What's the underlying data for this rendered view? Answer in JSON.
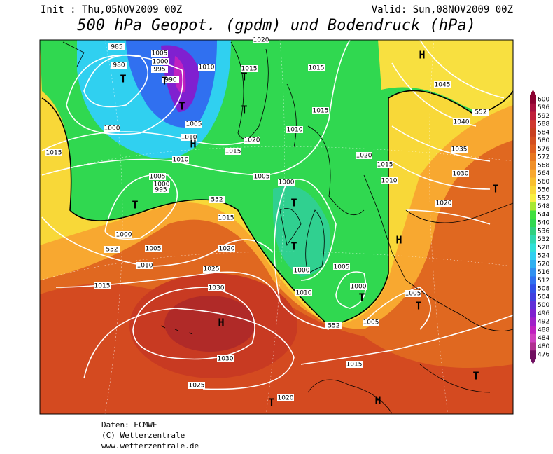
{
  "header": {
    "init": "Init : Thu,05NOV2009 00Z",
    "valid": "Valid: Sun,08NOV2009 00Z",
    "title": "500 hPa Geopot. (gpdm) und Bodendruck (hPa)"
  },
  "colorbar": {
    "levels": [
      600,
      596,
      592,
      588,
      584,
      580,
      576,
      572,
      568,
      564,
      560,
      556,
      552,
      548,
      544,
      540,
      536,
      532,
      528,
      524,
      520,
      516,
      512,
      508,
      504,
      500,
      496,
      492,
      488,
      484,
      480,
      476
    ],
    "colors": [
      "#8b0030",
      "#a8103f",
      "#c0203c",
      "#d03a30",
      "#c84020",
      "#d45020",
      "#e06020",
      "#e87820",
      "#f09028",
      "#f8a830",
      "#f8c030",
      "#f8d838",
      "#f8f040",
      "#a8e830",
      "#40e040",
      "#30d850",
      "#30d080",
      "#30d8b0",
      "#30e0d8",
      "#30d0f0",
      "#30b0f0",
      "#3090f0",
      "#3070f0",
      "#3050e8",
      "#4040e0",
      "#6030d8",
      "#8020d0",
      "#a020c8",
      "#c020c0",
      "#d040c0",
      "#b03090",
      "#701060"
    ]
  },
  "isobar_labels": [
    985,
    980,
    1005,
    1000,
    995,
    990,
    1010,
    1015,
    1015,
    1020,
    1045,
    1040,
    1035,
    1030,
    1015,
    1010,
    1005,
    1000,
    1010,
    1020,
    1015,
    1010,
    1015,
    1005,
    1000,
    995,
    1005,
    1000,
    1020,
    1015,
    1010,
    1020,
    1015,
    1000,
    1005,
    1020,
    1010,
    1025,
    1015,
    1030,
    1000,
    1005,
    1000,
    1010,
    1005,
    1005,
    1030,
    1015,
    1025,
    1020,
    552,
    552,
    552,
    552
  ],
  "pressure_centers": [
    "T",
    "T",
    "T",
    "H",
    "T",
    "T",
    "H",
    "T",
    "T",
    "T",
    "T",
    "H",
    "T",
    "T",
    "H",
    "T",
    "T",
    "H"
  ],
  "footer": [
    "Daten: ECMWF",
    "(C) Wetterzentrale",
    "www.wetterzentrale.de"
  ]
}
